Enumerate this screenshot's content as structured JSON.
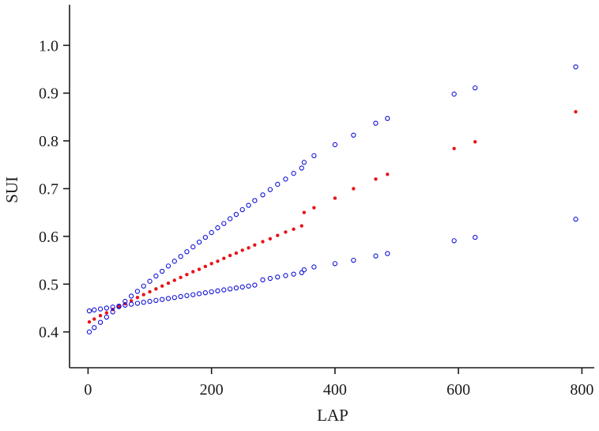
{
  "chart_data": {
    "type": "scatter",
    "title": "",
    "xlabel": "LAP",
    "ylabel": "SUI",
    "xlim": [
      -30,
      820
    ],
    "ylim": [
      0.325,
      1.085
    ],
    "x_ticks": [
      0,
      200,
      400,
      600,
      800
    ],
    "x_tick_labels": [
      "0",
      "200",
      "400",
      "600",
      "800"
    ],
    "y_ticks": [
      0.4,
      0.5,
      0.6,
      0.7,
      0.8,
      0.9,
      1.0
    ],
    "y_tick_labels": [
      "0.4",
      "0.5",
      "0.6",
      "0.7",
      "0.8",
      "0.9",
      "1.0"
    ],
    "grid": false,
    "legend": "none",
    "colors": {
      "fit": "#e8141a",
      "ci": "#1010d8",
      "axis": "#1a1a1a"
    },
    "series": [
      {
        "role": "fit",
        "marker": "filled-dot",
        "x": [
          2,
          10,
          20,
          30,
          40,
          50,
          60,
          70,
          80,
          90,
          100,
          110,
          120,
          130,
          140,
          150,
          160,
          170,
          180,
          190,
          200,
          210,
          220,
          230,
          240,
          250,
          260,
          270,
          283,
          295,
          307,
          320,
          333,
          346,
          350,
          366,
          400,
          430,
          466,
          485,
          593,
          627,
          790
        ],
        "y": [
          0.421,
          0.427,
          0.434,
          0.44,
          0.447,
          0.453,
          0.459,
          0.465,
          0.472,
          0.478,
          0.484,
          0.49,
          0.496,
          0.502,
          0.508,
          0.514,
          0.52,
          0.526,
          0.531,
          0.537,
          0.543,
          0.548,
          0.554,
          0.56,
          0.565,
          0.571,
          0.576,
          0.582,
          0.589,
          0.595,
          0.602,
          0.609,
          0.615,
          0.622,
          0.65,
          0.66,
          0.68,
          0.7,
          0.72,
          0.73,
          0.784,
          0.798,
          0.861
        ]
      },
      {
        "role": "upper-ci",
        "marker": "open-circle",
        "x": [
          2,
          10,
          20,
          30,
          40,
          50,
          60,
          70,
          80,
          90,
          100,
          110,
          120,
          130,
          140,
          150,
          160,
          170,
          180,
          190,
          200,
          210,
          220,
          230,
          240,
          250,
          260,
          270,
          283,
          295,
          307,
          320,
          333,
          346,
          350,
          366,
          400,
          430,
          466,
          485,
          593,
          627,
          790
        ],
        "y": [
          0.4,
          0.409,
          0.42,
          0.431,
          0.442,
          0.453,
          0.464,
          0.475,
          0.485,
          0.496,
          0.506,
          0.517,
          0.527,
          0.538,
          0.548,
          0.558,
          0.568,
          0.578,
          0.588,
          0.598,
          0.608,
          0.618,
          0.627,
          0.637,
          0.646,
          0.656,
          0.665,
          0.675,
          0.687,
          0.698,
          0.709,
          0.72,
          0.732,
          0.743,
          0.755,
          0.769,
          0.792,
          0.812,
          0.837,
          0.847,
          0.898,
          0.911,
          0.955
        ]
      },
      {
        "role": "lower-ci",
        "marker": "open-circle",
        "x": [
          2,
          10,
          20,
          30,
          40,
          50,
          60,
          70,
          80,
          90,
          100,
          110,
          120,
          130,
          140,
          150,
          160,
          170,
          180,
          190,
          200,
          210,
          220,
          230,
          240,
          250,
          260,
          270,
          283,
          295,
          307,
          320,
          333,
          346,
          350,
          366,
          400,
          430,
          466,
          485,
          593,
          627,
          790
        ],
        "y": [
          0.444,
          0.446,
          0.448,
          0.45,
          0.452,
          0.454,
          0.456,
          0.458,
          0.46,
          0.462,
          0.464,
          0.466,
          0.468,
          0.47,
          0.472,
          0.474,
          0.476,
          0.478,
          0.48,
          0.482,
          0.484,
          0.486,
          0.488,
          0.49,
          0.492,
          0.494,
          0.496,
          0.498,
          0.509,
          0.512,
          0.515,
          0.518,
          0.521,
          0.524,
          0.53,
          0.536,
          0.543,
          0.55,
          0.559,
          0.564,
          0.591,
          0.598,
          0.636
        ]
      }
    ]
  }
}
